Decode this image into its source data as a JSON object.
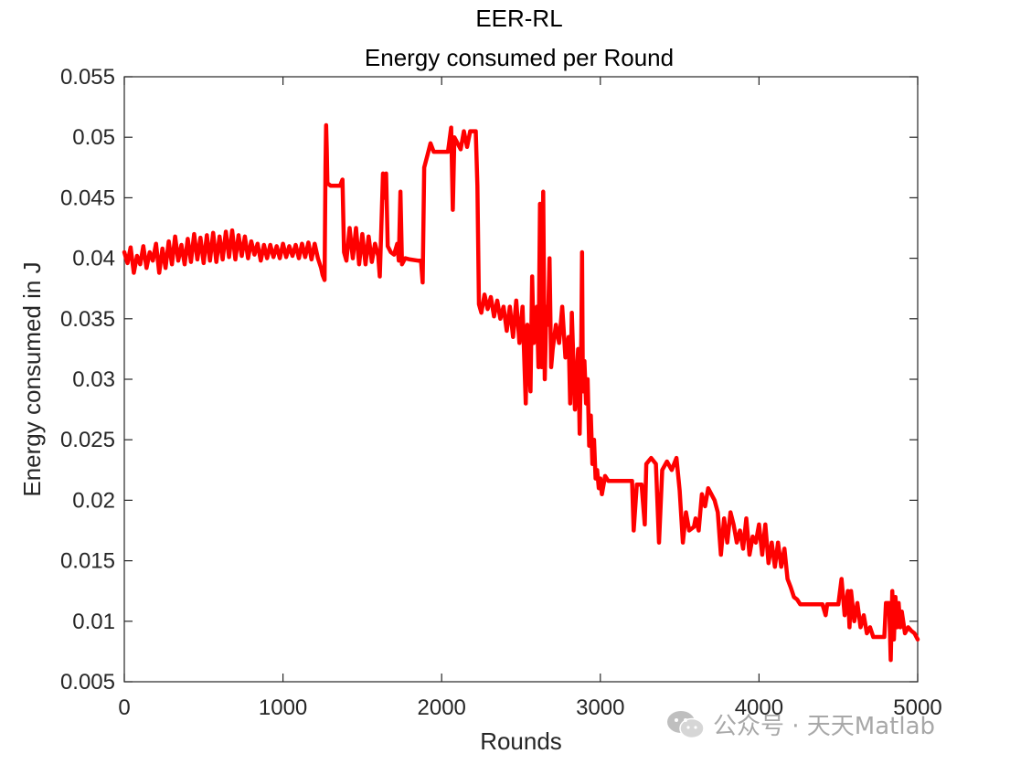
{
  "chart_data": {
    "type": "line",
    "title": "EER-RL",
    "subtitle": "Energy consumed per Round",
    "xlabel": "Rounds",
    "ylabel": "Energy consumed in J",
    "xlim": [
      0,
      5000
    ],
    "ylim": [
      0.005,
      0.055
    ],
    "xticks": [
      0,
      1000,
      2000,
      3000,
      4000,
      5000
    ],
    "xtick_labels": [
      "0",
      "1000",
      "2000",
      "3000",
      "4000",
      "5000"
    ],
    "yticks": [
      0.005,
      0.01,
      0.015,
      0.02,
      0.025,
      0.03,
      0.035,
      0.04,
      0.045,
      0.05,
      0.055
    ],
    "ytick_labels": [
      "0.005",
      "0.01",
      "0.015",
      "0.02",
      "0.025",
      "0.03",
      "0.035",
      "0.04",
      "0.045",
      "0.05",
      "0.055"
    ],
    "grid": false,
    "series": [
      {
        "name": "Energy consumed",
        "color": "#ff0000",
        "points": [
          [
            0,
            0.0405
          ],
          [
            20,
            0.0396
          ],
          [
            40,
            0.0409
          ],
          [
            60,
            0.0388
          ],
          [
            80,
            0.0402
          ],
          [
            100,
            0.0395
          ],
          [
            120,
            0.041
          ],
          [
            140,
            0.0392
          ],
          [
            160,
            0.0405
          ],
          [
            180,
            0.0398
          ],
          [
            200,
            0.0412
          ],
          [
            220,
            0.0388
          ],
          [
            240,
            0.0408
          ],
          [
            260,
            0.0392
          ],
          [
            280,
            0.0414
          ],
          [
            300,
            0.0395
          ],
          [
            320,
            0.0418
          ],
          [
            340,
            0.0398
          ],
          [
            360,
            0.0411
          ],
          [
            380,
            0.0395
          ],
          [
            400,
            0.0416
          ],
          [
            420,
            0.0397
          ],
          [
            440,
            0.042
          ],
          [
            460,
            0.0399
          ],
          [
            480,
            0.0417
          ],
          [
            500,
            0.0396
          ],
          [
            520,
            0.0419
          ],
          [
            540,
            0.0398
          ],
          [
            560,
            0.0421
          ],
          [
            580,
            0.0397
          ],
          [
            600,
            0.0418
          ],
          [
            620,
            0.0399
          ],
          [
            640,
            0.0422
          ],
          [
            660,
            0.0401
          ],
          [
            680,
            0.0423
          ],
          [
            700,
            0.0399
          ],
          [
            720,
            0.0419
          ],
          [
            740,
            0.0402
          ],
          [
            760,
            0.0418
          ],
          [
            780,
            0.04
          ],
          [
            800,
            0.0414
          ],
          [
            820,
            0.0403
          ],
          [
            840,
            0.0412
          ],
          [
            860,
            0.0398
          ],
          [
            880,
            0.0411
          ],
          [
            900,
            0.04
          ],
          [
            920,
            0.0411
          ],
          [
            940,
            0.0401
          ],
          [
            960,
            0.041
          ],
          [
            980,
            0.04
          ],
          [
            1000,
            0.0412
          ],
          [
            1020,
            0.0401
          ],
          [
            1040,
            0.041
          ],
          [
            1060,
            0.0402
          ],
          [
            1080,
            0.0411
          ],
          [
            1100,
            0.04
          ],
          [
            1120,
            0.0412
          ],
          [
            1140,
            0.0401
          ],
          [
            1160,
            0.0413
          ],
          [
            1180,
            0.0399
          ],
          [
            1200,
            0.0412
          ],
          [
            1220,
            0.04
          ],
          [
            1240,
            0.0392
          ],
          [
            1250,
            0.0386
          ],
          [
            1262,
            0.0382
          ],
          [
            1268,
            0.0475
          ],
          [
            1272,
            0.051
          ],
          [
            1276,
            0.049
          ],
          [
            1280,
            0.0462
          ],
          [
            1300,
            0.046
          ],
          [
            1320,
            0.046
          ],
          [
            1340,
            0.046
          ],
          [
            1360,
            0.046
          ],
          [
            1375,
            0.0465
          ],
          [
            1385,
            0.0405
          ],
          [
            1400,
            0.0398
          ],
          [
            1420,
            0.0425
          ],
          [
            1440,
            0.04
          ],
          [
            1460,
            0.0425
          ],
          [
            1480,
            0.0395
          ],
          [
            1500,
            0.042
          ],
          [
            1520,
            0.0395
          ],
          [
            1540,
            0.0418
          ],
          [
            1560,
            0.0397
          ],
          [
            1580,
            0.0412
          ],
          [
            1600,
            0.0402
          ],
          [
            1610,
            0.0385
          ],
          [
            1620,
            0.0425
          ],
          [
            1630,
            0.047
          ],
          [
            1640,
            0.045
          ],
          [
            1650,
            0.047
          ],
          [
            1660,
            0.041
          ],
          [
            1680,
            0.0405
          ],
          [
            1700,
            0.0403
          ],
          [
            1720,
            0.0412
          ],
          [
            1730,
            0.0398
          ],
          [
            1740,
            0.0455
          ],
          [
            1750,
            0.0395
          ],
          [
            1770,
            0.04
          ],
          [
            1800,
            0.0399
          ],
          [
            1850,
            0.0398
          ],
          [
            1870,
            0.0398
          ],
          [
            1880,
            0.038
          ],
          [
            1890,
            0.0475
          ],
          [
            1910,
            0.0485
          ],
          [
            1930,
            0.0495
          ],
          [
            1950,
            0.0488
          ],
          [
            2000,
            0.0488
          ],
          [
            2040,
            0.0488
          ],
          [
            2060,
            0.0508
          ],
          [
            2070,
            0.044
          ],
          [
            2080,
            0.05
          ],
          [
            2100,
            0.0495
          ],
          [
            2120,
            0.049
          ],
          [
            2140,
            0.0505
          ],
          [
            2160,
            0.0492
          ],
          [
            2180,
            0.0505
          ],
          [
            2200,
            0.0505
          ],
          [
            2215,
            0.0505
          ],
          [
            2225,
            0.046
          ],
          [
            2235,
            0.0362
          ],
          [
            2250,
            0.0355
          ],
          [
            2270,
            0.037
          ],
          [
            2290,
            0.0358
          ],
          [
            2310,
            0.0368
          ],
          [
            2330,
            0.0352
          ],
          [
            2350,
            0.0365
          ],
          [
            2370,
            0.035
          ],
          [
            2390,
            0.036
          ],
          [
            2410,
            0.034
          ],
          [
            2430,
            0.036
          ],
          [
            2450,
            0.0335
          ],
          [
            2470,
            0.0365
          ],
          [
            2490,
            0.033
          ],
          [
            2510,
            0.036
          ],
          [
            2530,
            0.028
          ],
          [
            2540,
            0.0345
          ],
          [
            2560,
            0.029
          ],
          [
            2570,
            0.0385
          ],
          [
            2580,
            0.033
          ],
          [
            2600,
            0.036
          ],
          [
            2610,
            0.031
          ],
          [
            2620,
            0.0445
          ],
          [
            2630,
            0.031
          ],
          [
            2640,
            0.0455
          ],
          [
            2650,
            0.03
          ],
          [
            2660,
            0.036
          ],
          [
            2670,
            0.0345
          ],
          [
            2680,
            0.04
          ],
          [
            2690,
            0.031
          ],
          [
            2700,
            0.0325
          ],
          [
            2720,
            0.0345
          ],
          [
            2740,
            0.033
          ],
          [
            2760,
            0.036
          ],
          [
            2780,
            0.0318
          ],
          [
            2800,
            0.0335
          ],
          [
            2810,
            0.028
          ],
          [
            2820,
            0.0355
          ],
          [
            2840,
            0.0275
          ],
          [
            2860,
            0.0325
          ],
          [
            2870,
            0.0255
          ],
          [
            2880,
            0.0335
          ],
          [
            2885,
            0.0405
          ],
          [
            2890,
            0.029
          ],
          [
            2900,
            0.0315
          ],
          [
            2910,
            0.028
          ],
          [
            2920,
            0.03
          ],
          [
            2930,
            0.0245
          ],
          [
            2940,
            0.027
          ],
          [
            2950,
            0.023
          ],
          [
            2960,
            0.025
          ],
          [
            2970,
            0.0218
          ],
          [
            2980,
            0.0225
          ],
          [
            2990,
            0.021
          ],
          [
            3000,
            0.0218
          ],
          [
            3010,
            0.0205
          ],
          [
            3030,
            0.022
          ],
          [
            3050,
            0.0216
          ],
          [
            3100,
            0.0216
          ],
          [
            3150,
            0.0216
          ],
          [
            3200,
            0.0216
          ],
          [
            3210,
            0.0175
          ],
          [
            3230,
            0.0213
          ],
          [
            3260,
            0.0213
          ],
          [
            3280,
            0.018
          ],
          [
            3290,
            0.023
          ],
          [
            3320,
            0.0235
          ],
          [
            3350,
            0.023
          ],
          [
            3370,
            0.0165
          ],
          [
            3390,
            0.0225
          ],
          [
            3420,
            0.0232
          ],
          [
            3450,
            0.0225
          ],
          [
            3480,
            0.0235
          ],
          [
            3500,
            0.0208
          ],
          [
            3520,
            0.0165
          ],
          [
            3540,
            0.019
          ],
          [
            3560,
            0.0175
          ],
          [
            3590,
            0.0178
          ],
          [
            3600,
            0.0185
          ],
          [
            3620,
            0.0175
          ],
          [
            3640,
            0.0205
          ],
          [
            3660,
            0.0195
          ],
          [
            3680,
            0.021
          ],
          [
            3700,
            0.0205
          ],
          [
            3720,
            0.02
          ],
          [
            3740,
            0.019
          ],
          [
            3760,
            0.0155
          ],
          [
            3780,
            0.0185
          ],
          [
            3800,
            0.0165
          ],
          [
            3820,
            0.019
          ],
          [
            3840,
            0.018
          ],
          [
            3860,
            0.0165
          ],
          [
            3880,
            0.0175
          ],
          [
            3900,
            0.016
          ],
          [
            3920,
            0.0185
          ],
          [
            3940,
            0.0155
          ],
          [
            3960,
            0.017
          ],
          [
            3980,
            0.0165
          ],
          [
            4000,
            0.018
          ],
          [
            4020,
            0.0155
          ],
          [
            4040,
            0.018
          ],
          [
            4060,
            0.0148
          ],
          [
            4080,
            0.0165
          ],
          [
            4100,
            0.0145
          ],
          [
            4120,
            0.0165
          ],
          [
            4140,
            0.0145
          ],
          [
            4160,
            0.016
          ],
          [
            4180,
            0.0135
          ],
          [
            4200,
            0.0128
          ],
          [
            4220,
            0.012
          ],
          [
            4240,
            0.0118
          ],
          [
            4260,
            0.0114
          ],
          [
            4300,
            0.0114
          ],
          [
            4350,
            0.0114
          ],
          [
            4400,
            0.0114
          ],
          [
            4420,
            0.0105
          ],
          [
            4430,
            0.0114
          ],
          [
            4450,
            0.0114
          ],
          [
            4480,
            0.0114
          ],
          [
            4500,
            0.0114
          ],
          [
            4520,
            0.0135
          ],
          [
            4540,
            0.0105
          ],
          [
            4560,
            0.0125
          ],
          [
            4570,
            0.0095
          ],
          [
            4580,
            0.0125
          ],
          [
            4600,
            0.01
          ],
          [
            4620,
            0.0115
          ],
          [
            4640,
            0.0095
          ],
          [
            4660,
            0.0105
          ],
          [
            4680,
            0.009
          ],
          [
            4700,
            0.0095
          ],
          [
            4720,
            0.0087
          ],
          [
            4760,
            0.0087
          ],
          [
            4790,
            0.0087
          ],
          [
            4800,
            0.0115
          ],
          [
            4820,
            0.0115
          ],
          [
            4830,
            0.0068
          ],
          [
            4840,
            0.0125
          ],
          [
            4850,
            0.0085
          ],
          [
            4860,
            0.012
          ],
          [
            4870,
            0.0095
          ],
          [
            4880,
            0.0115
          ],
          [
            4890,
            0.0095
          ],
          [
            4900,
            0.0108
          ],
          [
            4920,
            0.009
          ],
          [
            4940,
            0.0095
          ],
          [
            4960,
            0.0092
          ],
          [
            4980,
            0.009
          ],
          [
            5000,
            0.0085
          ]
        ]
      }
    ]
  },
  "watermark": {
    "text": "公众号 · 天天Matlab",
    "icon": "wechat-icon"
  }
}
